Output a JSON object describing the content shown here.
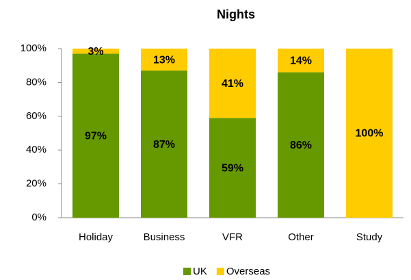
{
  "chart_data": {
    "type": "stacked_bar",
    "title": "Nights",
    "categories": [
      "Holiday",
      "Business",
      "VFR",
      "Other",
      "Study"
    ],
    "series": [
      {
        "name": "UK",
        "color": "#669900",
        "values": [
          97,
          87,
          59,
          86,
          0
        ],
        "value_labels": [
          "97%",
          "87%",
          "59%",
          "86%",
          null
        ]
      },
      {
        "name": "Overseas",
        "color": "#ffcc00",
        "values": [
          3,
          13,
          41,
          14,
          100
        ],
        "value_labels": [
          "3%",
          "13%",
          "41%",
          "14%",
          "100%"
        ]
      }
    ],
    "ylim": [
      0,
      100
    ],
    "yticks": [
      {
        "value": 0,
        "label": "0%"
      },
      {
        "value": 20,
        "label": "20%"
      },
      {
        "value": 40,
        "label": "40%"
      },
      {
        "value": 60,
        "label": "60%"
      },
      {
        "value": 80,
        "label": "80%"
      },
      {
        "value": 100,
        "label": "100%"
      }
    ],
    "grid": false,
    "legend": "bottom"
  }
}
